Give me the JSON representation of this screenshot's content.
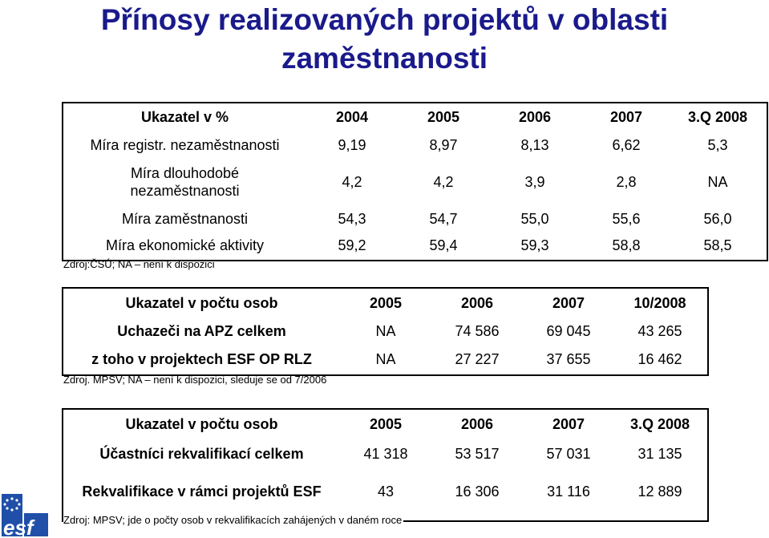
{
  "title": "Přínosy realizovaných projektů v oblasti zaměstnanosti",
  "table1": {
    "header": [
      "Ukazatel v %",
      "2004",
      "2005",
      "2006",
      "2007",
      "3.Q 2008"
    ],
    "rows": [
      [
        "Míra registr. nezaměstnanosti",
        "9,19",
        "8,97",
        "8,13",
        "6,62",
        "5,3"
      ],
      [
        "Míra dlouhodobé nezaměstnanosti",
        "4,2",
        "4,2",
        "3,9",
        "2,8",
        "NA"
      ],
      [
        "Míra zaměstnanosti",
        "54,3",
        "54,7",
        "55,0",
        "55,6",
        "56,0"
      ],
      [
        "Míra ekonomické aktivity",
        "59,2",
        "59,4",
        "59,3",
        "58,8",
        "58,5"
      ]
    ],
    "source": "Zdroj:ČSÚ; NA – není k dispozici"
  },
  "table2": {
    "header": [
      "Ukazatel v počtu osob",
      "2005",
      "2006",
      "2007",
      "10/2008"
    ],
    "rows": [
      [
        "Uchazeči na APZ celkem",
        "NA",
        "74 586",
        "69 045",
        "43 265"
      ],
      [
        "z toho v projektech ESF OP RLZ",
        "NA",
        "27 227",
        "37 655",
        "16 462"
      ]
    ],
    "source": "Zdroj. MPSV; NA – není k dispozici, sleduje se od 7/2006"
  },
  "table3": {
    "header": [
      "Ukazatel v počtu osob",
      "2005",
      "2006",
      "2007",
      "3.Q 2008"
    ],
    "rows": [
      [
        "Účastníci rekvalifikací celkem",
        "41 318",
        "53 517",
        "57 031",
        "31 135"
      ],
      [
        "Rekvalifikace v rámci projektů ESF",
        "43",
        "16 306",
        "31 116",
        "12 889"
      ]
    ],
    "source": "Zdroj: MPSV; jde o počty osob v rekvalifikacích zahájených v daném roce"
  },
  "logo": {
    "text": "esf",
    "colors": {
      "blue": "#1f4fa8",
      "white": "#ffffff",
      "star": "#ffcc00"
    }
  }
}
